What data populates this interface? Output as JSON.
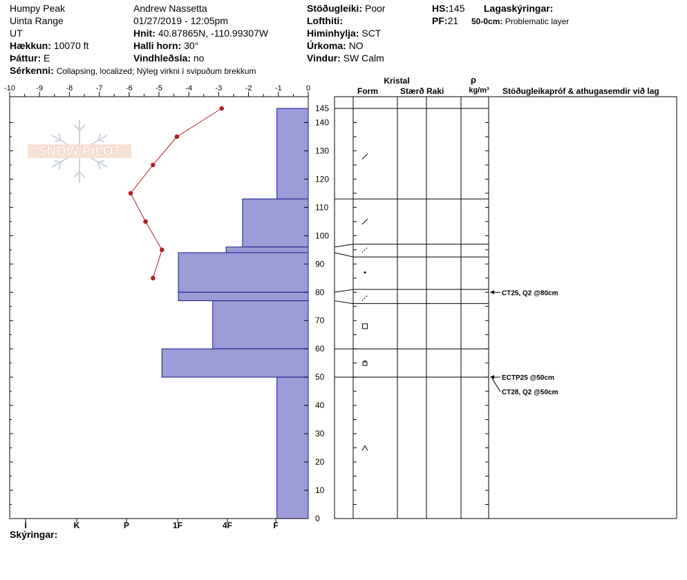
{
  "header": {
    "location": "Humpy Peak",
    "range": "Uinta Range",
    "state": "UT",
    "elevation_label": "Hækkun:",
    "elevation": "10070 ft",
    "aspect_label": "Þáttur:",
    "aspect": "E",
    "features_label": "Sérkenni:",
    "features": "Collapsing, localized;  Nýleg virkni í svipuðum brekkum",
    "observer": "Andrew Nassetta",
    "datetime": "01/27/2019 - 12:05pm",
    "coords_label": "Hnit:",
    "coords": "40.87865N, -110.99307W",
    "slope_label": "Halli horn:",
    "slope": "30°",
    "wind_loading_label": "Vindhleðsla:",
    "wind_loading": "no",
    "stability_label": "Stöðugleiki:",
    "stability": "Poor",
    "air_temp_label": "Lofthiti:",
    "air_temp": "",
    "sky_label": "Himinhylja:",
    "sky": "SCT",
    "precip_label": "Úrkoma:",
    "precip": "NO",
    "wind_label": "Vindur:",
    "wind": "SW Calm",
    "hs_label": "HS:",
    "hs": "145",
    "pf_label": "PF:",
    "pf": "21",
    "layer_notes_label": "Lagaskýringar:",
    "layer_note_depth": "50-0cm:",
    "layer_note_text": "Problematic layer"
  },
  "logo_text": "SNOW PILOT",
  "footer_label": "Skýringar:",
  "colors": {
    "hardness_fill": "#9b9bd7",
    "hardness_stroke": "#1a1a8c",
    "temp_line": "#b22222"
  },
  "chart_data": {
    "type": "snow-profile",
    "temp_axis": {
      "ticks": [
        "-10",
        "-9",
        "-8",
        "-7",
        "-6",
        "-5",
        "-4",
        "-3",
        "-2",
        "-1",
        "0"
      ],
      "range": [
        -10,
        0
      ]
    },
    "hardness_axis": {
      "labels": [
        "I",
        "K",
        "P",
        "1F",
        "4F",
        "F"
      ]
    },
    "depth_axis": {
      "ticks": [
        "0",
        "10",
        "20",
        "30",
        "40",
        "50",
        "60",
        "70",
        "80",
        "90",
        "100",
        "110",
        "120",
        "130",
        "140",
        "145"
      ],
      "range": [
        0,
        145
      ]
    },
    "temperature_profile": [
      {
        "depth": 145,
        "temp": -2.9
      },
      {
        "depth": 135,
        "temp": -4.4
      },
      {
        "depth": 125,
        "temp": -5.2
      },
      {
        "depth": 115,
        "temp": -5.95
      },
      {
        "depth": 105,
        "temp": -5.45
      },
      {
        "depth": 95,
        "temp": -4.9
      },
      {
        "depth": 85,
        "temp": -5.2
      }
    ],
    "hardness_layers": [
      {
        "top": 145,
        "bottom": 113,
        "hardness_temp_scale": -1.05
      },
      {
        "top": 113,
        "bottom": 96,
        "hardness_temp_scale": -2.2
      },
      {
        "top": 96,
        "bottom": 94,
        "hardness_temp_scale": -2.75
      },
      {
        "top": 94,
        "bottom": 80,
        "hardness_temp_scale": -4.35
      },
      {
        "top": 80,
        "bottom": 77,
        "hardness_temp_scale": -4.35
      },
      {
        "top": 77,
        "bottom": 60,
        "hardness_temp_scale": -3.2
      },
      {
        "top": 60,
        "bottom": 50,
        "hardness_temp_scale": -4.9
      },
      {
        "top": 50,
        "bottom": 0,
        "hardness_temp_scale": -1.05
      }
    ],
    "column_headers": {
      "crystal": "Kristal",
      "form": "Form",
      "size": "Stærð",
      "moisture": "Raki",
      "rho": "ρ",
      "density_unit": "kg/m³",
      "comments": "Stöðugleikapróf & athugasemdir við lag"
    },
    "layer_boundaries": [
      145,
      113,
      97,
      92.5,
      81,
      76,
      60,
      50,
      0
    ],
    "form_symbols": [
      {
        "depth": 128,
        "symbol": "precip-particles"
      },
      {
        "depth": 105,
        "symbol": "decomposing"
      },
      {
        "depth": 95,
        "symbol": "decomposing-dotted"
      },
      {
        "depth": 87,
        "symbol": "rounded-dot"
      },
      {
        "depth": 78,
        "symbol": "decomposing-dotted"
      },
      {
        "depth": 68,
        "symbol": "faceted-square"
      },
      {
        "depth": 55,
        "symbol": "mixed-faceted"
      },
      {
        "depth": 25,
        "symbol": "depth-hoar"
      }
    ],
    "tests": [
      {
        "depth": 80,
        "label": "CT25, Q2 @80cm"
      },
      {
        "depth": 50,
        "label": "ECTP25 @50cm"
      },
      {
        "depth": 50,
        "label": "CT28, Q2 @50cm"
      }
    ]
  }
}
